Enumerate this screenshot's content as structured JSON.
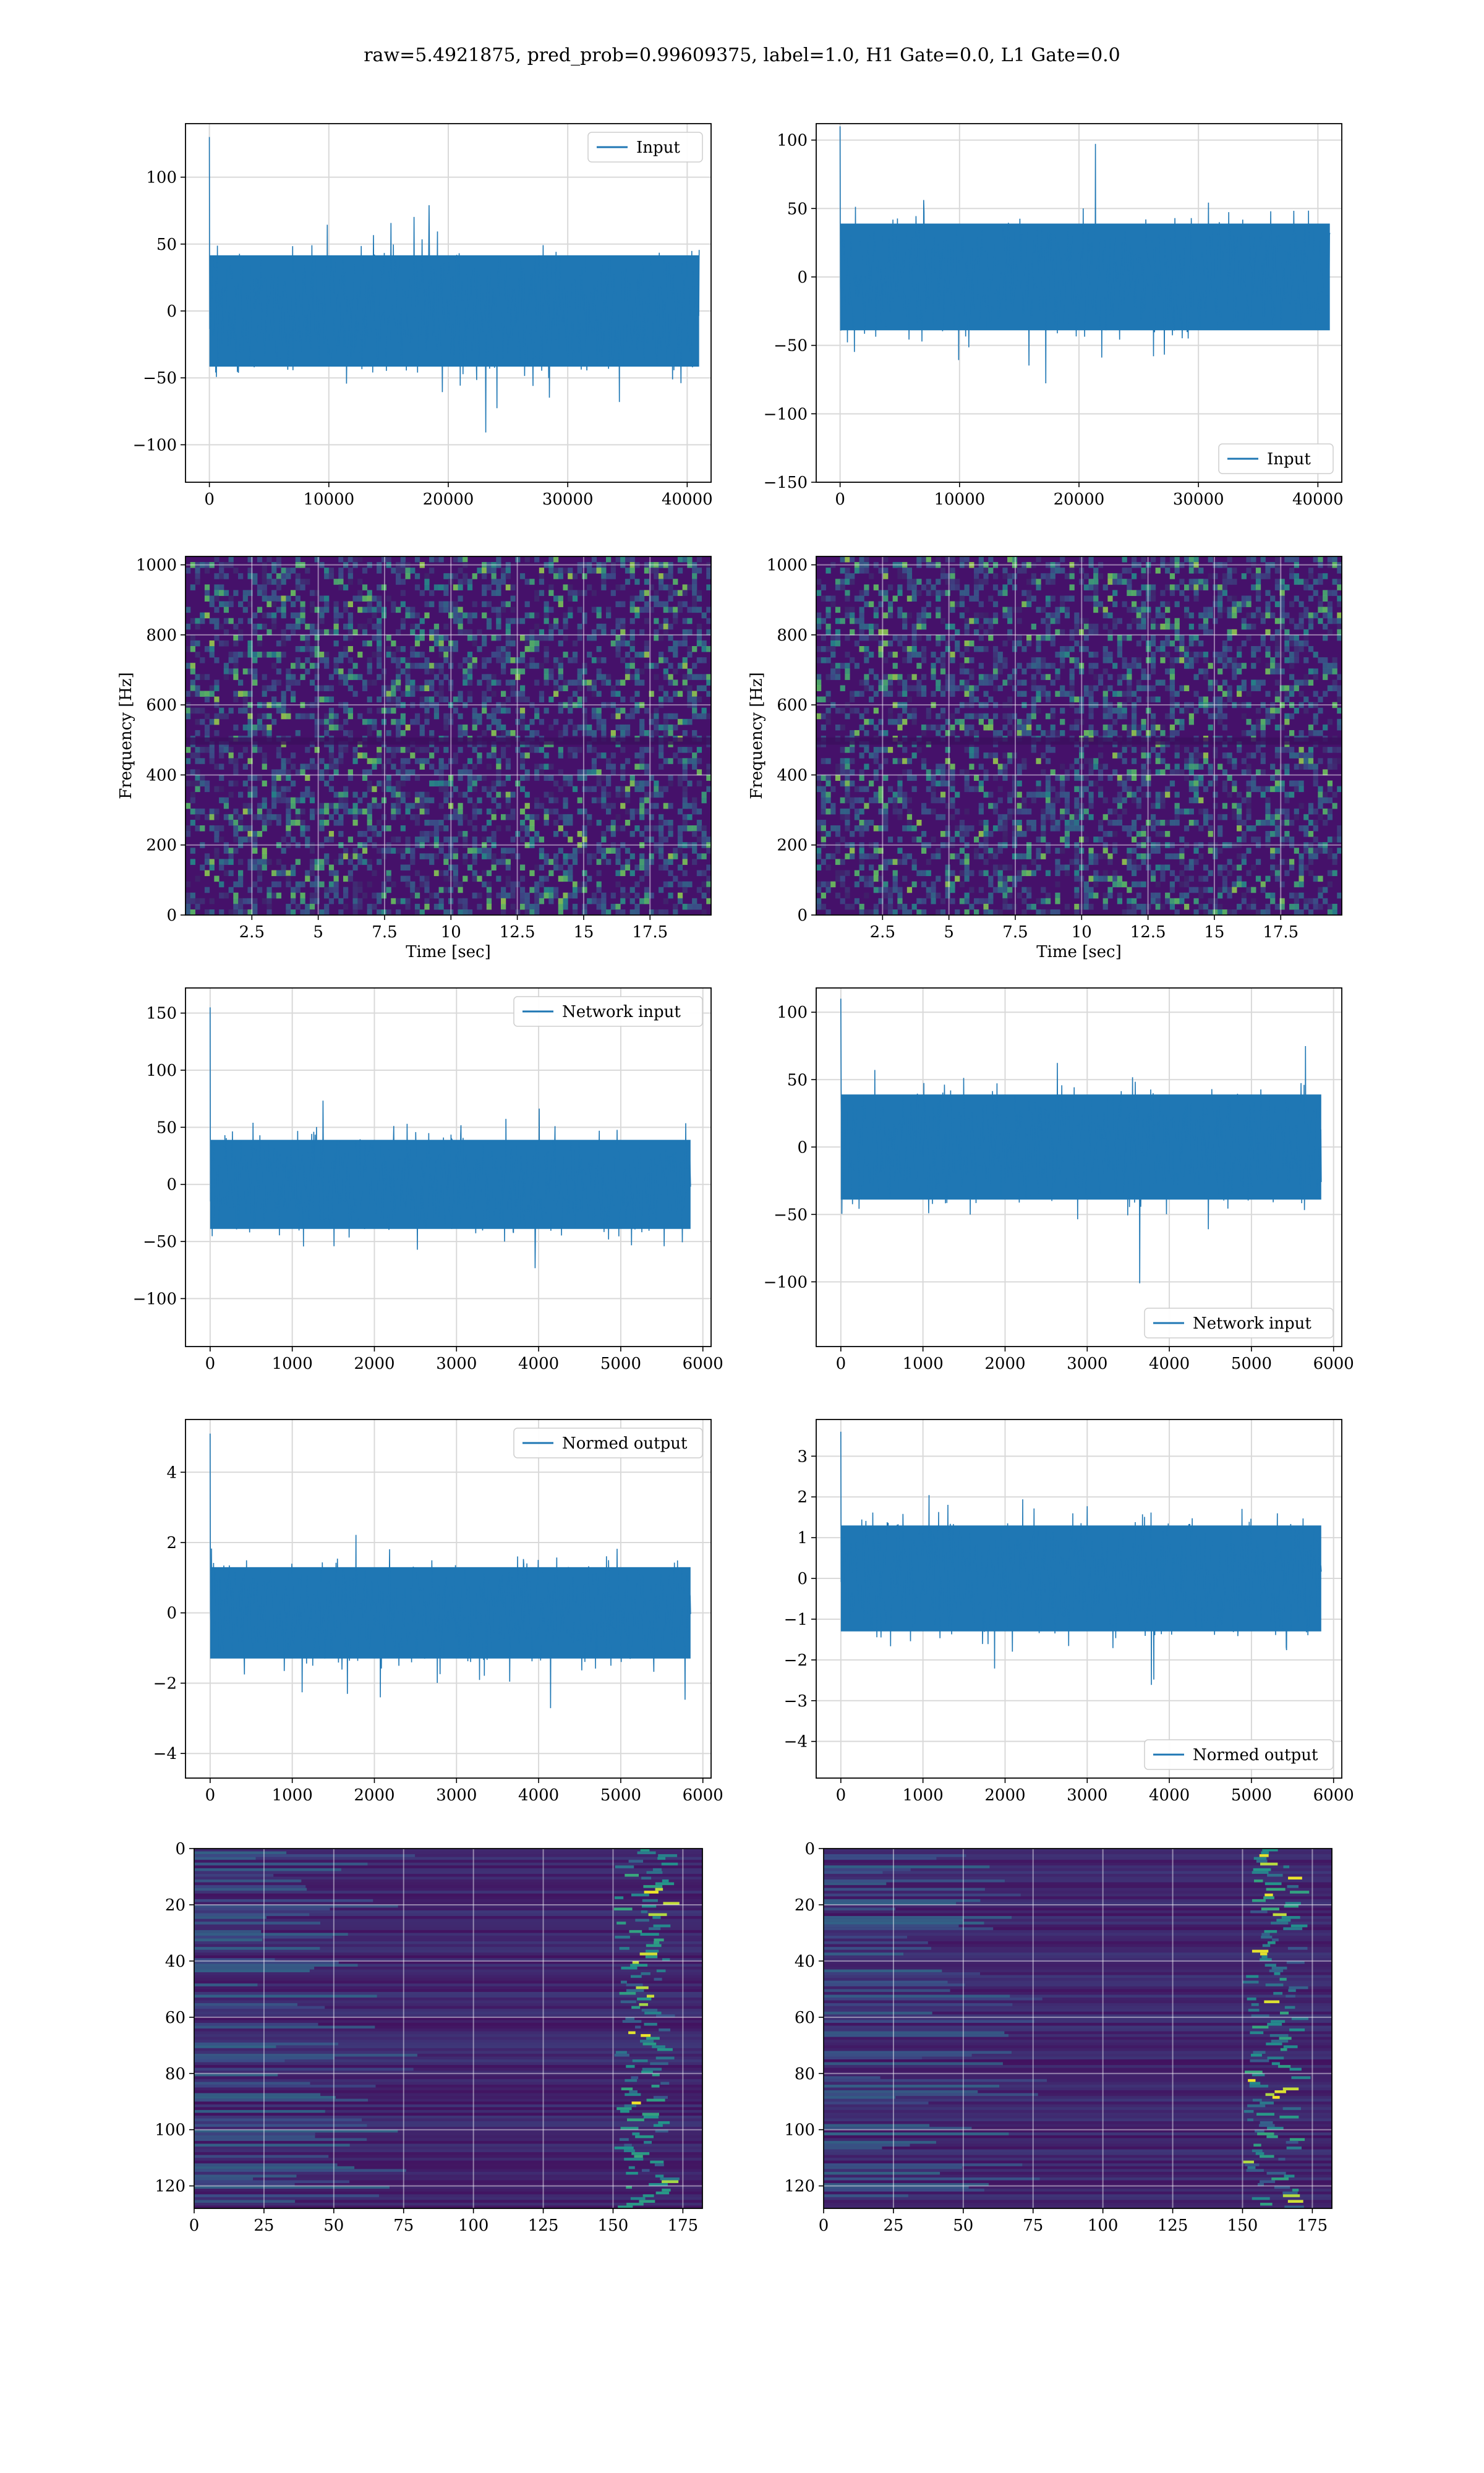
{
  "figure_title": "raw=5.4921875, pred_prob=0.99609375, label=1.0, H1 Gate=0.0, L1 Gate=0.0",
  "colors": {
    "series": "#1f77b4",
    "grid": "#d9d9d9",
    "spec_bg": "#45116a",
    "spec_mid": "#2a788e",
    "spec_hi": "#22a884",
    "spec_peak": "#fde725"
  },
  "chart_data": [
    {
      "id": "h1-input",
      "type": "line",
      "legend": "Input",
      "legend_loc": "upper right",
      "xlim": [
        -2000,
        42000
      ],
      "ylim": [
        -128,
        140
      ],
      "xticks": [
        0,
        10000,
        20000,
        30000,
        40000
      ],
      "yticks": [
        -100,
        -50,
        0,
        50,
        100
      ],
      "n": 41000,
      "amp": 32,
      "spike": 130,
      "grid": true
    },
    {
      "id": "l1-input",
      "type": "line",
      "legend": "Input",
      "legend_loc": "lower right",
      "xlim": [
        -2000,
        42000
      ],
      "ylim": [
        -150,
        112
      ],
      "xticks": [
        0,
        10000,
        20000,
        30000,
        40000
      ],
      "yticks": [
        -150,
        -100,
        -50,
        0,
        50,
        100
      ],
      "n": 41000,
      "amp": 30,
      "spike": 110,
      "grid": true
    },
    {
      "id": "h1-spectrogram",
      "type": "heatmap",
      "xlabel": "Time [sec]",
      "ylabel": "Frequency [Hz]",
      "xlim": [
        0,
        19.8
      ],
      "ylim": [
        0,
        1024
      ],
      "xticks": [
        2.5,
        5.0,
        7.5,
        10.0,
        12.5,
        15.0,
        17.5
      ],
      "yticks": [
        0,
        200,
        400,
        600,
        800,
        1000
      ],
      "grid": true
    },
    {
      "id": "l1-spectrogram",
      "type": "heatmap",
      "xlabel": "Time [sec]",
      "ylabel": "Frequency [Hz]",
      "xlim": [
        0,
        19.8
      ],
      "ylim": [
        0,
        1024
      ],
      "xticks": [
        2.5,
        5.0,
        7.5,
        10.0,
        12.5,
        15.0,
        17.5
      ],
      "yticks": [
        0,
        200,
        400,
        600,
        800,
        1000
      ],
      "grid": true
    },
    {
      "id": "h1-network-input",
      "type": "line",
      "legend": "Network input",
      "legend_loc": "upper right",
      "xlim": [
        -300,
        6100
      ],
      "ylim": [
        -142,
        172
      ],
      "xticks": [
        0,
        1000,
        2000,
        3000,
        4000,
        5000,
        6000
      ],
      "yticks": [
        -100,
        -50,
        0,
        50,
        100,
        150
      ],
      "n": 5850,
      "amp": 30,
      "spike": 155,
      "grid": true
    },
    {
      "id": "l1-network-input",
      "type": "line",
      "legend": "Network input",
      "legend_loc": "lower right",
      "xlim": [
        -300,
        6100
      ],
      "ylim": [
        -148,
        118
      ],
      "xticks": [
        0,
        1000,
        2000,
        3000,
        4000,
        5000,
        6000
      ],
      "yticks": [
        -100,
        -50,
        0,
        50,
        100
      ],
      "n": 5850,
      "amp": 30,
      "spike": 110,
      "grid": true
    },
    {
      "id": "h1-normed-output",
      "type": "line",
      "legend": "Normed output",
      "legend_loc": "upper right",
      "xlim": [
        -300,
        6100
      ],
      "ylim": [
        -4.7,
        5.5
      ],
      "xticks": [
        0,
        1000,
        2000,
        3000,
        4000,
        5000,
        6000
      ],
      "yticks": [
        -4,
        -2,
        0,
        2,
        4
      ],
      "n": 5850,
      "amp": 1.0,
      "spike": 5.1,
      "grid": true
    },
    {
      "id": "l1-normed-output",
      "type": "line",
      "legend": "Normed output",
      "legend_loc": "lower right",
      "xlim": [
        -300,
        6100
      ],
      "ylim": [
        -4.9,
        3.9
      ],
      "xticks": [
        0,
        1000,
        2000,
        3000,
        4000,
        5000,
        6000
      ],
      "yticks": [
        -4,
        -3,
        -2,
        -1,
        0,
        1,
        2,
        3
      ],
      "n": 5850,
      "amp": 1.0,
      "spike": 3.6,
      "grid": true
    },
    {
      "id": "h1-features",
      "type": "heatmap",
      "xlim": [
        0,
        182
      ],
      "ylim": [
        128,
        0
      ],
      "xticks": [
        0,
        25,
        50,
        75,
        100,
        125,
        150,
        175
      ],
      "yticks": [
        0,
        20,
        40,
        60,
        80,
        100,
        120
      ],
      "grid": true
    },
    {
      "id": "l1-features",
      "type": "heatmap",
      "xlim": [
        0,
        182
      ],
      "ylim": [
        128,
        0
      ],
      "xticks": [
        0,
        25,
        50,
        75,
        100,
        125,
        150,
        175
      ],
      "yticks": [
        0,
        20,
        40,
        60,
        80,
        100,
        120
      ],
      "grid": true
    }
  ]
}
